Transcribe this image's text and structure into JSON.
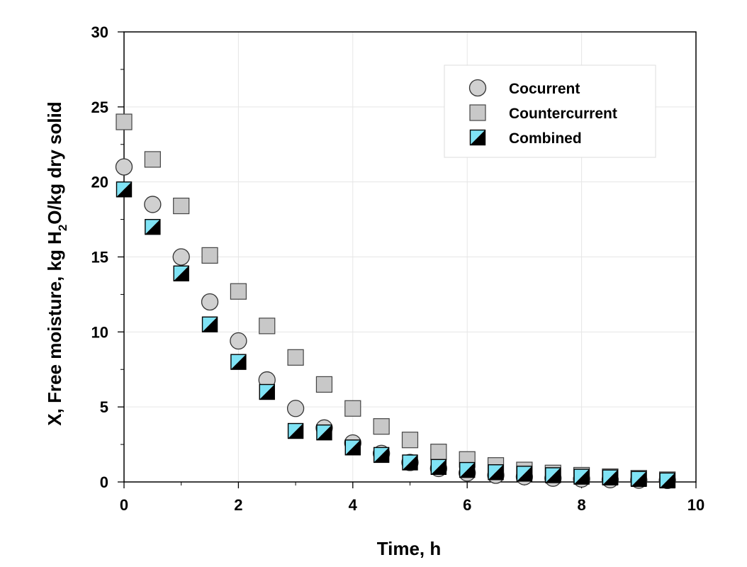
{
  "chart_data": {
    "type": "scatter",
    "xlabel": "Time, h",
    "ylabel": {
      "pre": "X, Free moisture, kg H",
      "sub": "2",
      "post": "O/kg dry solid"
    },
    "xlim": [
      0,
      10
    ],
    "ylim": [
      0,
      30
    ],
    "xticks": [
      "0",
      "2",
      "4",
      "6",
      "8",
      "10"
    ],
    "yticks": [
      "0",
      "5",
      "10",
      "15",
      "20",
      "25",
      "30"
    ],
    "grid": true,
    "legend_position": "top-right",
    "series": [
      {
        "name": "Cocurrent",
        "marker": "circle",
        "color": "#d0d0d0",
        "x": [
          0,
          0.5,
          1,
          1.5,
          2,
          2.5,
          3,
          3.5,
          4,
          4.5,
          5,
          5.5,
          6,
          6.5,
          7,
          7.5,
          8,
          8.5,
          9,
          9.5
        ],
        "y": [
          21.0,
          18.5,
          15.0,
          12.0,
          9.4,
          6.8,
          4.9,
          3.6,
          2.6,
          1.9,
          1.3,
          0.9,
          0.6,
          0.45,
          0.35,
          0.25,
          0.2,
          0.15,
          0.12,
          0.1
        ]
      },
      {
        "name": "Countercurrent",
        "marker": "square",
        "color": "#c8c8c8",
        "x": [
          0,
          0.5,
          1,
          1.5,
          2,
          2.5,
          3,
          3.5,
          4,
          4.5,
          5,
          5.5,
          6,
          6.5,
          7,
          7.5,
          8,
          8.5,
          9,
          9.5
        ],
        "y": [
          24.0,
          21.5,
          18.4,
          15.1,
          12.7,
          10.4,
          8.3,
          6.5,
          4.9,
          3.7,
          2.8,
          2.0,
          1.5,
          1.1,
          0.8,
          0.6,
          0.45,
          0.35,
          0.25,
          0.15
        ]
      },
      {
        "name": "Combined",
        "marker": "half-square",
        "color": "#7fe3f5",
        "x": [
          0,
          0.5,
          1,
          1.5,
          2,
          2.5,
          3,
          3.5,
          4,
          4.5,
          5,
          5.5,
          6,
          6.5,
          7,
          7.5,
          8,
          8.5,
          9,
          9.5
        ],
        "y": [
          19.5,
          17.0,
          13.9,
          10.5,
          8.0,
          6.0,
          3.4,
          3.3,
          2.3,
          1.8,
          1.3,
          1.0,
          0.8,
          0.65,
          0.55,
          0.45,
          0.35,
          0.3,
          0.2,
          0.1
        ]
      }
    ]
  }
}
